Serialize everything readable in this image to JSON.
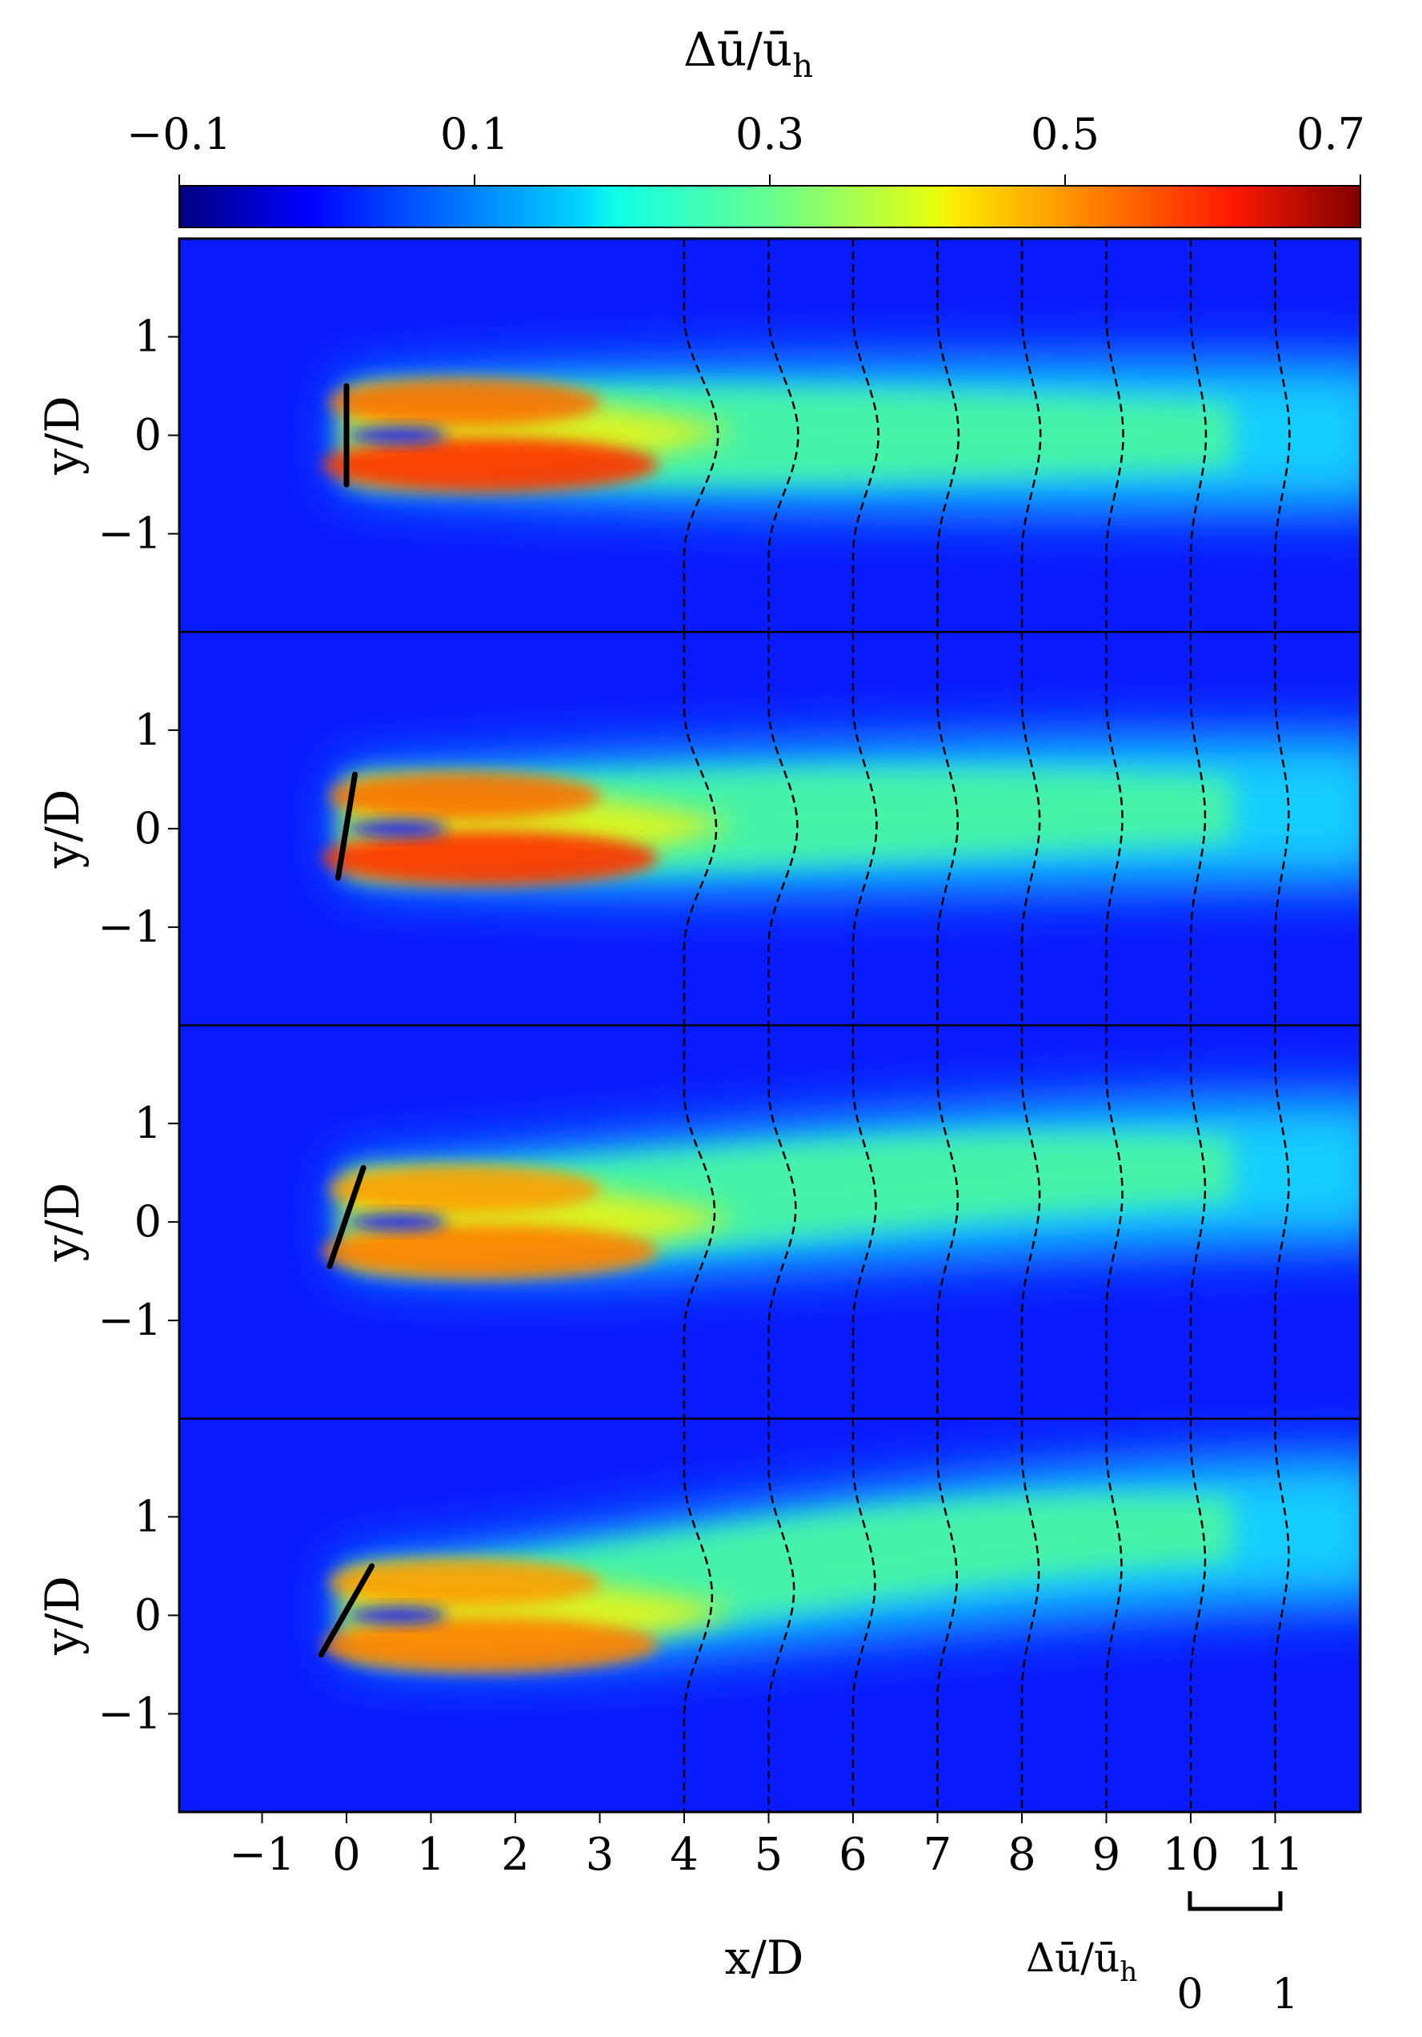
{
  "chart_data": {
    "type": "heatmap",
    "layout": "4 vertically stacked contour panels sharing x axis and colorbar",
    "colorbar": {
      "title": "Δū/ū",
      "title_subscript": "h",
      "range": [
        -0.1,
        0.7
      ],
      "ticks": [
        -0.1,
        0.1,
        0.3,
        0.5,
        0.7
      ],
      "tick_labels": [
        "−0.1",
        "0.1",
        "0.3",
        "0.5",
        "0.7"
      ],
      "colormap": "jet",
      "position": "top"
    },
    "xlabel": "x/D",
    "ylabel": "y/D",
    "xlim": [
      -2.0,
      12.1
    ],
    "ylim": [
      -2.0,
      2.0
    ],
    "xticks": [
      -1,
      0,
      1,
      2,
      3,
      4,
      5,
      6,
      7,
      8,
      9,
      10,
      11
    ],
    "xtick_labels": [
      "−1",
      "0",
      "1",
      "2",
      "3",
      "4",
      "5",
      "6",
      "7",
      "8",
      "9",
      "10",
      "11"
    ],
    "yticks": [
      1,
      0,
      -1
    ],
    "ytick_labels": [
      "1",
      "0",
      "−1"
    ],
    "profile_stations_xD": [
      4,
      5,
      6,
      7,
      8,
      9,
      10,
      11
    ],
    "profile_scale": {
      "label": "Δū/ū",
      "label_subscript": "h",
      "tick_labels": [
        "0",
        "1"
      ],
      "from": 0,
      "to": 1
    },
    "panels": [
      {
        "rotor_tip_top": [
          0.0,
          0.5
        ],
        "rotor_tip_bottom": [
          0.0,
          -0.5
        ],
        "peak_deficit": 0.6,
        "profile_peak_deficit": [
          0.4,
          0.35,
          0.3,
          0.25,
          0.22,
          0.2,
          0.18,
          0.17
        ],
        "profile_peak_yD": [
          0.0,
          0.0,
          0.0,
          0.0,
          0.0,
          0.0,
          0.0,
          0.0
        ]
      },
      {
        "rotor_tip_top": [
          0.1,
          0.55
        ],
        "rotor_tip_bottom": [
          -0.1,
          -0.5
        ],
        "peak_deficit": 0.58,
        "profile_peak_deficit": [
          0.38,
          0.34,
          0.28,
          0.24,
          0.21,
          0.19,
          0.17,
          0.16
        ],
        "profile_peak_yD": [
          0.0,
          0.02,
          0.04,
          0.06,
          0.08,
          0.1,
          0.12,
          0.14
        ]
      },
      {
        "rotor_tip_top": [
          0.2,
          0.55
        ],
        "rotor_tip_bottom": [
          -0.2,
          -0.45
        ],
        "peak_deficit": 0.52,
        "profile_peak_deficit": [
          0.36,
          0.32,
          0.27,
          0.24,
          0.21,
          0.19,
          0.17,
          0.16
        ],
        "profile_peak_yD": [
          0.1,
          0.14,
          0.18,
          0.22,
          0.26,
          0.3,
          0.34,
          0.38
        ]
      },
      {
        "rotor_tip_top": [
          0.3,
          0.5
        ],
        "rotor_tip_bottom": [
          -0.3,
          -0.4
        ],
        "peak_deficit": 0.45,
        "profile_peak_deficit": [
          0.33,
          0.3,
          0.26,
          0.23,
          0.2,
          0.18,
          0.17,
          0.16
        ],
        "profile_peak_yD": [
          0.2,
          0.26,
          0.32,
          0.38,
          0.44,
          0.5,
          0.56,
          0.62
        ]
      }
    ]
  }
}
